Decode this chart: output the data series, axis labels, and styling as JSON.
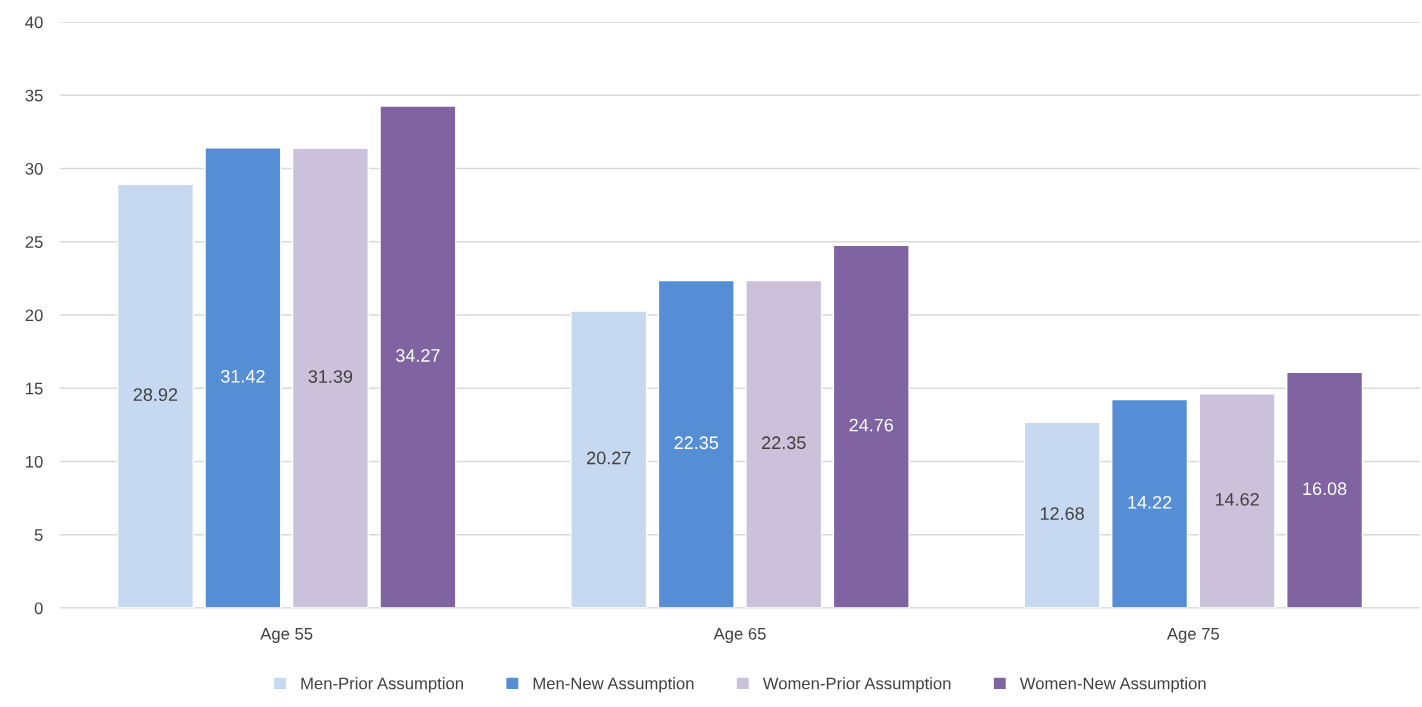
{
  "chart_data": {
    "type": "bar",
    "categories": [
      "Age 55",
      "Age 65",
      "Age 75"
    ],
    "series": [
      {
        "name": "Men-Prior Assumption",
        "color": "#c6d9f0",
        "values": [
          28.92,
          20.27,
          12.68
        ]
      },
      {
        "name": "Men-New Assumption",
        "color": "#558ed5",
        "values": [
          31.42,
          22.35,
          14.22
        ]
      },
      {
        "name": "Women-Prior Assumption",
        "color": "#ccc1da",
        "values": [
          31.39,
          22.35,
          14.62
        ]
      },
      {
        "name": "Women-New Assumption",
        "color": "#8064a2",
        "values": [
          34.27,
          24.76,
          16.08
        ]
      }
    ],
    "ylim": [
      0,
      40
    ],
    "yticks": [
      0,
      5,
      10,
      15,
      20,
      25,
      30,
      35,
      40
    ],
    "grid": "y",
    "legend": "bottom",
    "data_labels": true
  }
}
